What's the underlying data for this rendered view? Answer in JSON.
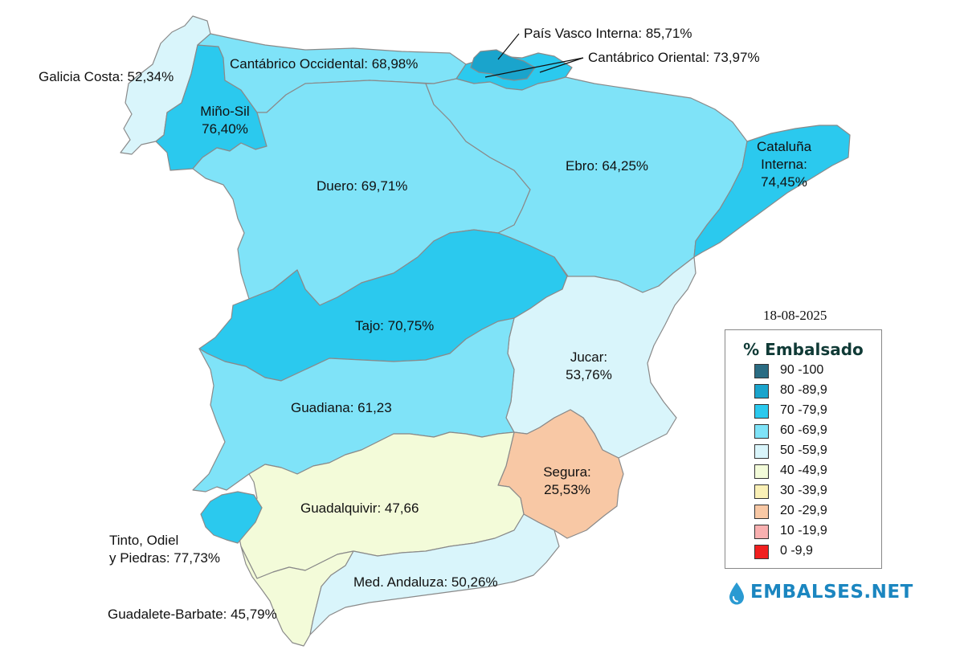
{
  "date": "18-08-2025",
  "legend": {
    "title": "% Embalsado",
    "items": [
      {
        "label": "90 -100",
        "color": "#2a6c83"
      },
      {
        "label": "80 -89,9",
        "color": "#1aa4cc"
      },
      {
        "label": "70 -79,9",
        "color": "#2bc9ee"
      },
      {
        "label": "60 -69,9",
        "color": "#7fe3f8"
      },
      {
        "label": "50 -59,9",
        "color": "#d9f5fb"
      },
      {
        "label": "40 -49,9",
        "color": "#f3fbd9"
      },
      {
        "label": "30 -39,9",
        "color": "#faf0b6"
      },
      {
        "label": "20 -29,9",
        "color": "#f8c8a5"
      },
      {
        "label": "10 -19,9",
        "color": "#f9b0b0"
      },
      {
        "label": "0 -9,9",
        "color": "#f01f1f"
      }
    ]
  },
  "regions": {
    "galicia_costa": {
      "label": "Galicia Costa: 52,34%",
      "color": "#d9f5fb"
    },
    "mino_sil": {
      "label_line1": "Miño-Sil",
      "label_line2": "76,40%",
      "color": "#2bc9ee"
    },
    "cantabrico_occidental": {
      "label": "Cantábrico Occidental: 68,98%",
      "color": "#7fe3f8"
    },
    "pais_vasco_interna": {
      "label": "País Vasco Interna: 85,71%",
      "color": "#1aa4cc"
    },
    "cantabrico_oriental": {
      "label": "Cantábrico Oriental: 73,97%",
      "color": "#2bc9ee"
    },
    "duero": {
      "label": "Duero: 69,71%",
      "color": "#7fe3f8"
    },
    "ebro": {
      "label": "Ebro: 64,25%",
      "color": "#7fe3f8"
    },
    "cataluna_interna": {
      "label_line1": "Cataluña",
      "label_line2": "Interna:",
      "label_line3": "74,45%",
      "color": "#2bc9ee"
    },
    "tajo": {
      "label": "Tajo: 70,75%",
      "color": "#2bc9ee"
    },
    "jucar": {
      "label_line1": "Jucar:",
      "label_line2": "53,76%",
      "color": "#d9f5fb"
    },
    "guadiana": {
      "label": "Guadiana: 61,23",
      "color": "#7fe3f8"
    },
    "segura": {
      "label_line1": "Segura:",
      "label_line2": "25,53%",
      "color": "#f8c8a5"
    },
    "guadalquivir": {
      "label": "Guadalquivir: 47,66",
      "color": "#f3fbd9"
    },
    "tinto_odiel": {
      "label_line1": "Tinto, Odiel",
      "label_line2": "y Piedras: 77,73%",
      "color": "#2bc9ee"
    },
    "guadalete_barbate": {
      "label": "Guadalete-Barbate: 45,79%",
      "color": "#f3fbd9"
    },
    "med_andaluza": {
      "label": "Med. Andaluza: 50,26%",
      "color": "#d9f5fb"
    }
  },
  "brand": {
    "name": "EMBALSES.NET",
    "icon": "water-drop-icon",
    "color": "#1b86c0"
  }
}
